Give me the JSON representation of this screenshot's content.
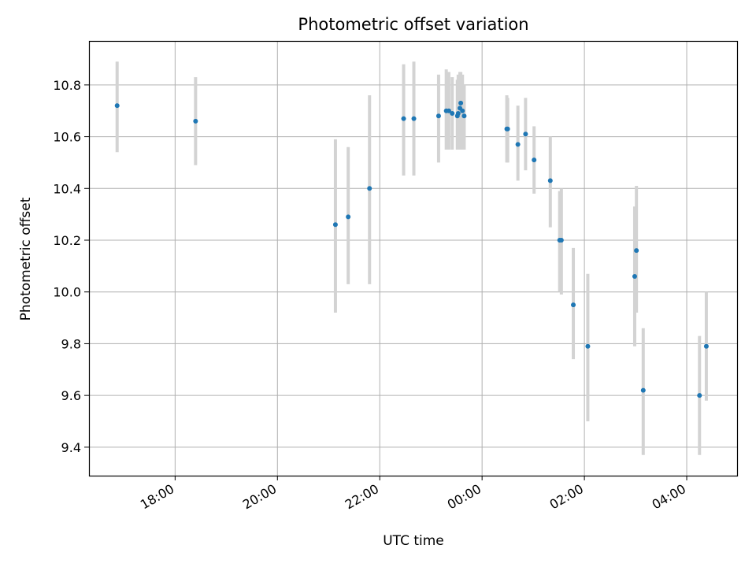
{
  "chart_data": {
    "type": "scatter",
    "title": "Photometric offset variation",
    "xlabel": "UTC time",
    "ylabel": "Photometric offset",
    "x_axis_kind": "time",
    "x_range": [
      "16:19",
      "05:00"
    ],
    "ylim": [
      9.29,
      10.97
    ],
    "grid": true,
    "x_ticks": [
      "18:00",
      "20:00",
      "22:00",
      "00:00",
      "02:00",
      "04:00"
    ],
    "y_ticks": [
      "9.4",
      "9.6",
      "9.8",
      "10.0",
      "10.2",
      "10.4",
      "10.6",
      "10.8"
    ],
    "colors": {
      "point": "#1f77b4",
      "errorbar": "#d3d3d3",
      "grid": "#b0b0b0"
    },
    "series": [
      {
        "points": [
          {
            "time": "16:52",
            "value": 10.72,
            "low": 10.54,
            "high": 10.89
          },
          {
            "time": "18:24",
            "value": 10.66,
            "low": 10.49,
            "high": 10.83
          },
          {
            "time": "21:08",
            "value": 10.26,
            "low": 9.92,
            "high": 10.59
          },
          {
            "time": "21:23",
            "value": 10.29,
            "low": 10.03,
            "high": 10.56
          },
          {
            "time": "21:48",
            "value": 10.4,
            "low": 10.03,
            "high": 10.76
          },
          {
            "time": "22:28",
            "value": 10.67,
            "low": 10.45,
            "high": 10.88
          },
          {
            "time": "22:40",
            "value": 10.67,
            "low": 10.45,
            "high": 10.89
          },
          {
            "time": "23:09",
            "value": 10.68,
            "low": 10.5,
            "high": 10.84
          },
          {
            "time": "23:18",
            "value": 10.7,
            "low": 10.55,
            "high": 10.86
          },
          {
            "time": "23:21",
            "value": 10.7,
            "low": 10.55,
            "high": 10.85
          },
          {
            "time": "23:25",
            "value": 10.69,
            "low": 10.55,
            "high": 10.83
          },
          {
            "time": "23:31",
            "value": 10.68,
            "low": 10.55,
            "high": 10.82
          },
          {
            "time": "23:32",
            "value": 10.69,
            "low": 10.55,
            "high": 10.84
          },
          {
            "time": "23:34",
            "value": 10.71,
            "low": 10.55,
            "high": 10.85
          },
          {
            "time": "23:35",
            "value": 10.73,
            "low": 10.57,
            "high": 10.85
          },
          {
            "time": "23:37",
            "value": 10.7,
            "low": 10.55,
            "high": 10.84
          },
          {
            "time": "23:39",
            "value": 10.68,
            "low": 10.55,
            "high": 10.8
          },
          {
            "time": "00:29",
            "value": 10.63,
            "low": 10.5,
            "high": 10.76
          },
          {
            "time": "00:30",
            "value": 10.63,
            "low": 10.5,
            "high": 10.75
          },
          {
            "time": "00:42",
            "value": 10.57,
            "low": 10.43,
            "high": 10.72
          },
          {
            "time": "00:51",
            "value": 10.61,
            "low": 10.47,
            "high": 10.75
          },
          {
            "time": "01:01",
            "value": 10.51,
            "low": 10.38,
            "high": 10.64
          },
          {
            "time": "01:20",
            "value": 10.43,
            "low": 10.25,
            "high": 10.6
          },
          {
            "time": "01:31",
            "value": 10.2,
            "low": 10.0,
            "high": 10.39
          },
          {
            "time": "01:33",
            "value": 10.2,
            "low": 9.99,
            "high": 10.4
          },
          {
            "time": "01:47",
            "value": 9.95,
            "low": 9.74,
            "high": 10.17
          },
          {
            "time": "02:04",
            "value": 9.79,
            "low": 9.5,
            "high": 10.07
          },
          {
            "time": "02:59",
            "value": 10.06,
            "low": 9.79,
            "high": 10.33
          },
          {
            "time": "03:01",
            "value": 10.16,
            "low": 9.92,
            "high": 10.41
          },
          {
            "time": "03:09",
            "value": 9.62,
            "low": 9.37,
            "high": 9.86
          },
          {
            "time": "04:15",
            "value": 9.6,
            "low": 9.37,
            "high": 9.83
          },
          {
            "time": "04:23",
            "value": 9.79,
            "low": 9.58,
            "high": 10.0
          }
        ]
      }
    ]
  }
}
